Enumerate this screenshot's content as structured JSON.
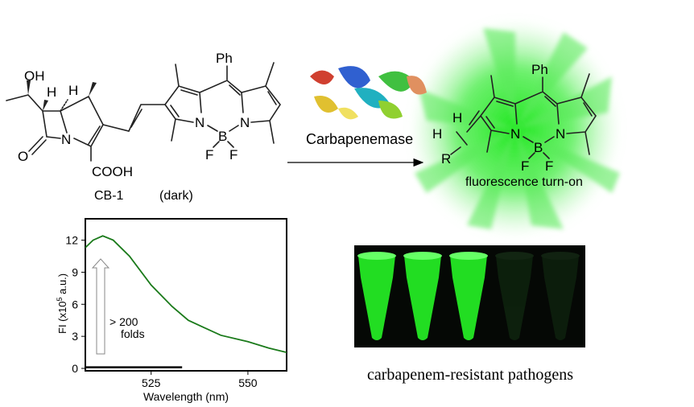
{
  "scheme": {
    "probe_name": "CB-1",
    "probe_state": "(dark)",
    "enzyme_label": "Carbapenemase",
    "product_state": "fluorescence turn-on",
    "atoms": {
      "oh": "OH",
      "h": "H",
      "n": "N",
      "b": "B",
      "f": "F",
      "o": "O",
      "cooh": "COOH",
      "ph": "Ph",
      "r": "R"
    },
    "colors": {
      "glow": "#39e639",
      "arrow": "#000000"
    }
  },
  "chart_data": {
    "type": "line",
    "xlabel": "Wavelength (nm)",
    "ylabel": "FI (x10",
    "ylabel_sup": "5",
    "ylabel_tail": " a.u.)",
    "xlim": [
      508,
      560
    ],
    "ylim": [
      0,
      14
    ],
    "xticks": [
      525,
      550
    ],
    "yticks": [
      0,
      3,
      6,
      9,
      12
    ],
    "annotation": "> 200",
    "annotation2": "folds",
    "series": [
      {
        "color": "#1a7a1a",
        "x": [
          508,
          510,
          512.5,
          515.2,
          519.4,
          525,
          530.4,
          534.6,
          538.8,
          543,
          550,
          555.4,
          560
        ],
        "y": [
          11.3,
          12.0,
          12.4,
          12.0,
          10.5,
          7.8,
          5.8,
          4.5,
          3.8,
          3.1,
          2.5,
          1.9,
          1.5
        ]
      },
      {
        "color": "#000000",
        "x": [
          508,
          533
        ],
        "y": [
          0.1,
          0.1
        ]
      }
    ]
  },
  "photo": {
    "caption": "carbapenem-resistant pathogens",
    "tube_intensity": [
      1,
      1,
      1,
      0.15,
      0.1
    ]
  }
}
